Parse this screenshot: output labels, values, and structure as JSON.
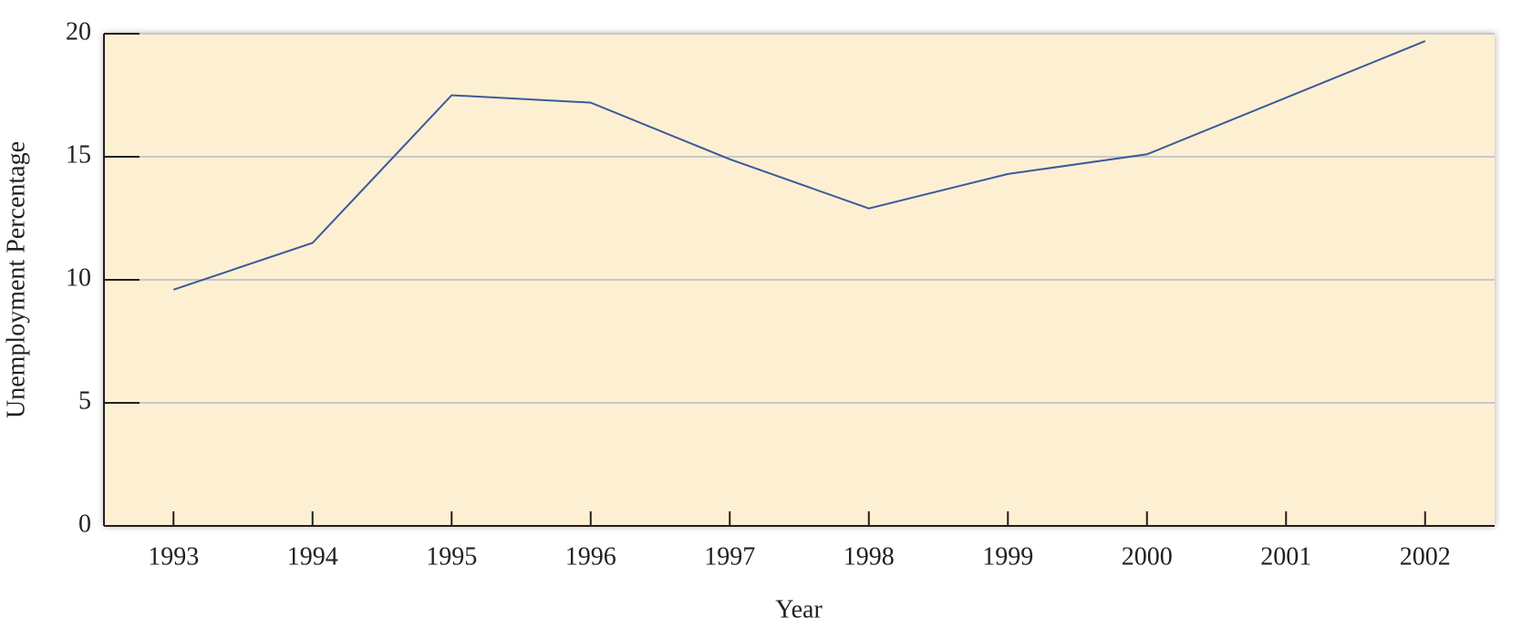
{
  "chart_data": {
    "type": "line",
    "x": [
      1993,
      1994,
      1995,
      1996,
      1997,
      1998,
      1999,
      2000,
      2001,
      2002
    ],
    "series": [
      {
        "color": "#3c5a9a",
        "values": [
          9.6,
          11.5,
          17.5,
          17.2,
          14.9,
          12.9,
          14.3,
          15.1,
          17.4,
          19.7
        ]
      }
    ],
    "xlim": [
      1992.5,
      2002.5
    ],
    "xticks": [
      1993,
      1994,
      1995,
      1996,
      1997,
      1998,
      1999,
      2000,
      2001,
      2002
    ],
    "ylim": [
      0,
      20
    ],
    "yticks": [
      0,
      5,
      10,
      15,
      20
    ],
    "xlabel": "Year",
    "ylabel": "Unemployment Percentage",
    "grid": true,
    "background": "#fdf0d2"
  }
}
